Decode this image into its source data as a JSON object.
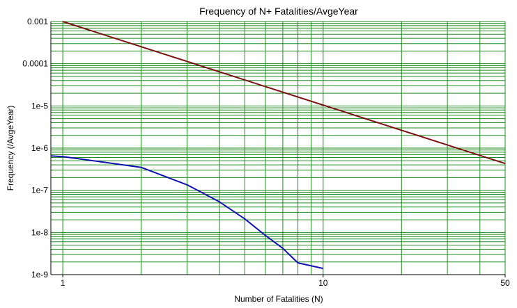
{
  "chart_data": {
    "type": "line",
    "title": "Frequency of N+ Fatalities/AvgeYear",
    "xlabel": "Number of Fatalities (N)",
    "ylabel": "Frequency (/AvgeYear)",
    "x_scale": "log",
    "y_scale": "log",
    "xlim": [
      0.9,
      50
    ],
    "ylim": [
      1e-09,
      0.001
    ],
    "x_tick_labels": [
      {
        "value": 1,
        "label": "1"
      },
      {
        "value": 10,
        "label": "10"
      },
      {
        "value": 50,
        "label": "50"
      }
    ],
    "y_tick_labels": [
      {
        "value": 0.001,
        "label": "0.001"
      },
      {
        "value": 0.0001,
        "label": "0.0001"
      },
      {
        "value": 1e-05,
        "label": "1e-5"
      },
      {
        "value": 1e-06,
        "label": "1e-6"
      },
      {
        "value": 1e-07,
        "label": "1e-7"
      },
      {
        "value": 1e-08,
        "label": "1e-8"
      },
      {
        "value": 1e-09,
        "label": "1e-9"
      }
    ],
    "grid": true,
    "series": [
      {
        "color": "#7b1010",
        "x": [
          1,
          50
        ],
        "y": [
          0.001,
          4.3e-07
        ]
      },
      {
        "color": "#1010b0",
        "x": [
          0.9,
          1,
          2,
          3,
          4,
          5,
          6,
          7,
          8,
          10
        ],
        "y": [
          6.5e-07,
          6.3e-07,
          3.5e-07,
          1.35e-07,
          5.3e-08,
          2.1e-08,
          8.5e-09,
          4.2e-09,
          1.9e-09,
          1.4e-09
        ]
      }
    ]
  },
  "colors": {
    "grid": "#1f8a1f",
    "axis": "#000000",
    "background": "#ffffff"
  }
}
